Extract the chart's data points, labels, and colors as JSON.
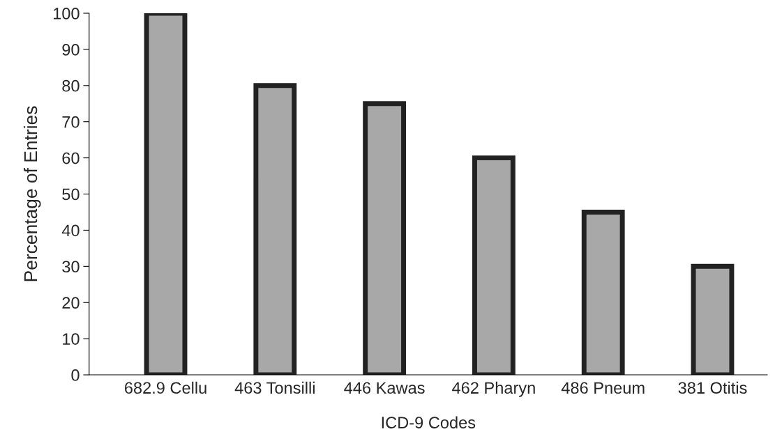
{
  "chart_data": {
    "type": "bar",
    "xlabel": "ICD-9 Codes",
    "ylabel": "Percentage of Entries",
    "categories": [
      "682.9 Cellu",
      "463 Tonsilli",
      "446 Kawas",
      "462 Pharyn",
      "486 Pneum",
      "381 Otitis"
    ],
    "values": [
      100,
      80,
      75,
      60,
      45,
      30
    ],
    "color": "#a8a8a8",
    "ylim": [
      0,
      100
    ],
    "yticks": [
      0,
      10,
      20,
      30,
      40,
      50,
      60,
      70,
      80,
      90,
      100
    ],
    "grid": false
  }
}
